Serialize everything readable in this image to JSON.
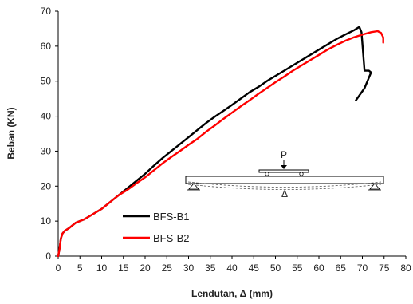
{
  "chart_data": {
    "type": "line",
    "title": "",
    "xlabel": "Lendutan, Δ (mm)",
    "ylabel": "Beban (KN)",
    "xlim": [
      0,
      80
    ],
    "ylim": [
      0,
      70
    ],
    "x_ticks": [
      "0",
      "5",
      "10",
      "15",
      "20",
      "25",
      "30",
      "35",
      "40",
      "45",
      "50",
      "55",
      "60",
      "65",
      "70",
      "75",
      "80"
    ],
    "y_ticks": [
      "0",
      "10",
      "20",
      "30",
      "40",
      "50",
      "60",
      "70"
    ],
    "grid": false,
    "legend_position": "lower-right",
    "series": [
      {
        "name": "BFS-B1",
        "color": "#000000",
        "points": [
          [
            0,
            0
          ],
          [
            0.3,
            2
          ],
          [
            0.6,
            5
          ],
          [
            1,
            6.5
          ],
          [
            1.5,
            7.2
          ],
          [
            2.5,
            8
          ],
          [
            4,
            9.5
          ],
          [
            6,
            10.5
          ],
          [
            8,
            12
          ],
          [
            10,
            13.5
          ],
          [
            12,
            15.5
          ],
          [
            14,
            17.5
          ],
          [
            16,
            19.5
          ],
          [
            18,
            21.5
          ],
          [
            20,
            23.5
          ],
          [
            22,
            25.8
          ],
          [
            24,
            28
          ],
          [
            26,
            30
          ],
          [
            28,
            32
          ],
          [
            30,
            34
          ],
          [
            32,
            36
          ],
          [
            34,
            38
          ],
          [
            36,
            39.8
          ],
          [
            38,
            41.5
          ],
          [
            40,
            43.2
          ],
          [
            42,
            45
          ],
          [
            44,
            46.8
          ],
          [
            46,
            48.3
          ],
          [
            48,
            50
          ],
          [
            50,
            51.5
          ],
          [
            52,
            53
          ],
          [
            54,
            54.5
          ],
          [
            56,
            56
          ],
          [
            58,
            57.5
          ],
          [
            60,
            59
          ],
          [
            62,
            60.5
          ],
          [
            64,
            62
          ],
          [
            66,
            63.3
          ],
          [
            68,
            64.5
          ],
          [
            69.3,
            65.5
          ],
          [
            69.8,
            64
          ],
          [
            70.5,
            53
          ],
          [
            71.5,
            53
          ],
          [
            72,
            52.5
          ],
          [
            70.5,
            48
          ],
          [
            68.5,
            44.5
          ]
        ]
      },
      {
        "name": "BFS-B2",
        "color": "#ff0000",
        "points": [
          [
            0,
            0
          ],
          [
            0.3,
            2
          ],
          [
            0.6,
            5
          ],
          [
            1,
            6.5
          ],
          [
            1.5,
            7.2
          ],
          [
            2.5,
            8
          ],
          [
            4,
            9.5
          ],
          [
            6,
            10.5
          ],
          [
            8,
            12
          ],
          [
            10,
            13.5
          ],
          [
            12,
            15.5
          ],
          [
            14,
            17.5
          ],
          [
            16,
            19
          ],
          [
            18,
            20.8
          ],
          [
            20,
            22.5
          ],
          [
            22,
            24.5
          ],
          [
            24,
            26.5
          ],
          [
            26,
            28.3
          ],
          [
            28,
            30
          ],
          [
            30,
            31.8
          ],
          [
            32,
            33.5
          ],
          [
            34,
            35.5
          ],
          [
            36,
            37.3
          ],
          [
            38,
            39.2
          ],
          [
            40,
            41
          ],
          [
            42,
            42.8
          ],
          [
            44,
            44.5
          ],
          [
            46,
            46.3
          ],
          [
            48,
            48
          ],
          [
            50,
            49.7
          ],
          [
            52,
            51.3
          ],
          [
            54,
            53
          ],
          [
            56,
            54.5
          ],
          [
            58,
            56
          ],
          [
            60,
            57.5
          ],
          [
            62,
            59
          ],
          [
            64,
            60.3
          ],
          [
            66,
            61.5
          ],
          [
            68,
            62.5
          ],
          [
            70,
            63.3
          ],
          [
            72,
            64
          ],
          [
            73.5,
            64.3
          ],
          [
            74.3,
            63.8
          ],
          [
            74.8,
            62.5
          ],
          [
            74.8,
            61
          ]
        ]
      }
    ],
    "inset": {
      "label_load": "P",
      "label_deflection": "Δ"
    }
  }
}
